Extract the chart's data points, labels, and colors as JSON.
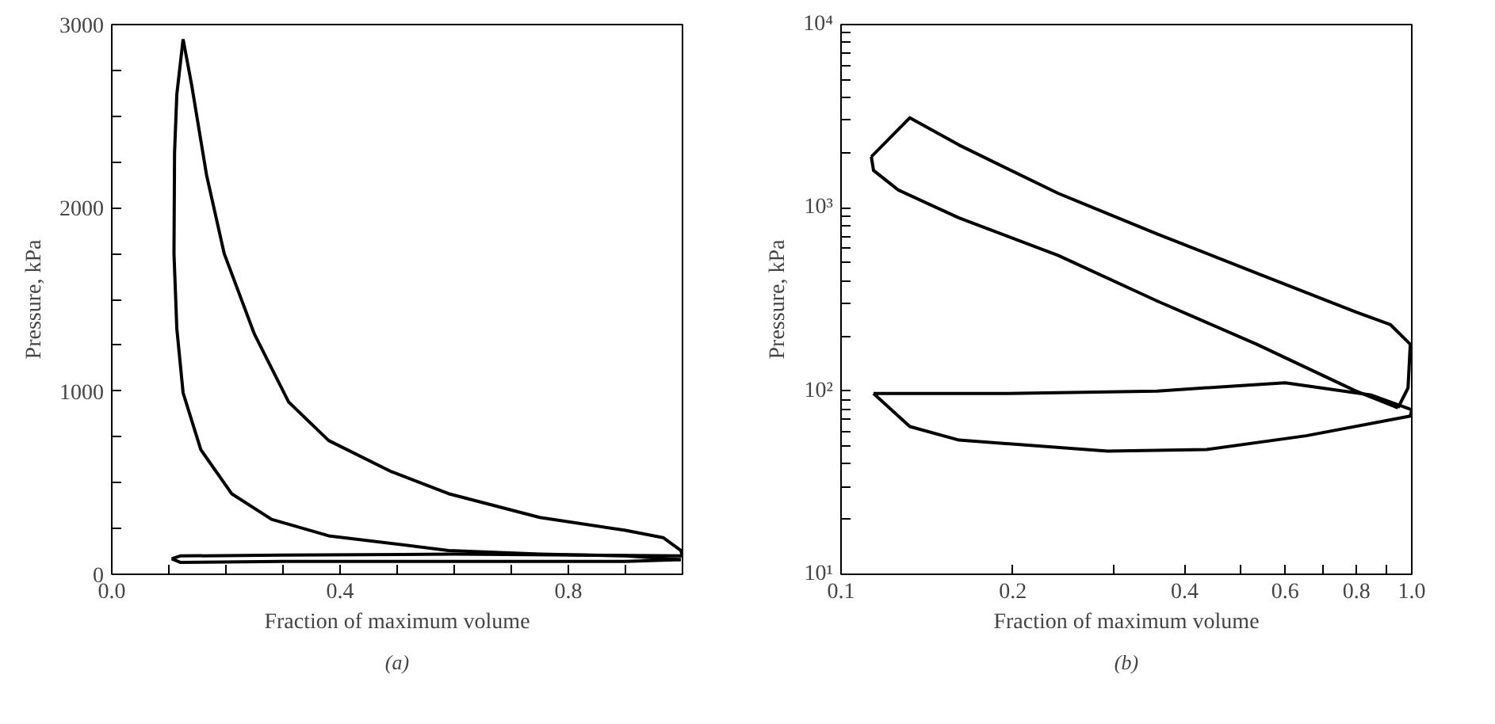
{
  "chart_data": [
    {
      "type": "line",
      "xlabel": "Fraction of maximum volume",
      "ylabel": "Pressure, kPa",
      "annotations": [
        "(a)"
      ],
      "xlim": [
        0.0,
        1.0
      ],
      "ylim": [
        0,
        3000
      ],
      "xticks": [
        {
          "value": 0.0,
          "label": "0.0"
        },
        {
          "value": 0.1,
          "label": null
        },
        {
          "value": 0.2,
          "label": null
        },
        {
          "value": 0.3,
          "label": null
        },
        {
          "value": 0.4,
          "label": "0.4"
        },
        {
          "value": 0.5,
          "label": null
        },
        {
          "value": 0.6,
          "label": null
        },
        {
          "value": 0.7,
          "label": null
        },
        {
          "value": 0.8,
          "label": "0.8"
        },
        {
          "value": 0.9,
          "label": null
        }
      ],
      "yticks": [
        0,
        {
          "value": 250,
          "label": null
        },
        {
          "value": 500,
          "label": null
        },
        {
          "value": 750,
          "label": null
        },
        1000,
        {
          "value": 1250,
          "label": null
        },
        {
          "value": 1500,
          "label": null
        },
        {
          "value": 1750,
          "label": null
        },
        2000,
        {
          "value": 2250,
          "label": null
        },
        {
          "value": 2500,
          "label": null
        },
        {
          "value": 2750,
          "label": null
        },
        3000
      ],
      "grid": false,
      "marker": "none",
      "line_style": "solid",
      "series": [
        {
          "color": "#000000",
          "x": [
            0.997,
            0.9,
            0.75,
            0.59,
            0.38,
            0.28,
            0.21,
            0.156,
            0.125,
            0.114,
            0.109,
            0.11,
            0.114,
            0.125
          ],
          "values": [
            80,
            100,
            110,
            130,
            210,
            300,
            440,
            680,
            990,
            1340,
            1750,
            2300,
            2620,
            2920
          ]
        },
        {
          "color": "#000000",
          "x": [
            0.125,
            0.14,
            0.166,
            0.197,
            0.25,
            0.31,
            0.38,
            0.49,
            0.59,
            0.75,
            0.9,
            0.966,
            0.997,
            1.0
          ],
          "values": [
            2920,
            2670,
            2180,
            1750,
            1310,
            940,
            730,
            560,
            440,
            310,
            240,
            200,
            130,
            100
          ]
        },
        {
          "color": "#000000",
          "x": [
            1.0,
            0.6,
            0.3,
            0.12,
            0.105
          ],
          "values": [
            100,
            110,
            105,
            100,
            85
          ]
        },
        {
          "color": "#000000",
          "x": [
            0.105,
            0.12,
            0.3,
            0.6,
            0.9,
            0.997
          ],
          "values": [
            85,
            65,
            70,
            70,
            70,
            80
          ]
        }
      ]
    },
    {
      "type": "line",
      "xlabel": "Fraction of maximum volume",
      "ylabel": "Pressure, kPa",
      "annotations": [
        "(b)"
      ],
      "log": "xy",
      "xlim": [
        0.1,
        1.0
      ],
      "ylim": [
        10,
        10000
      ],
      "xticks": [
        {
          "value": 0.1,
          "label": "0.1"
        },
        {
          "value": 0.2,
          "label": "0.2"
        },
        {
          "value": 0.3,
          "label": null
        },
        {
          "value": 0.4,
          "label": "0.4"
        },
        {
          "value": 0.5,
          "label": null
        },
        {
          "value": 0.6,
          "label": "0.6"
        },
        {
          "value": 0.7,
          "label": null
        },
        {
          "value": 0.8,
          "label": "0.8"
        },
        {
          "value": 0.9,
          "label": null
        },
        {
          "value": 1.0,
          "label": "1.0"
        }
      ],
      "yticks": [
        {
          "value": 10,
          "label": "10¹"
        },
        {
          "value": 20,
          "label": null
        },
        {
          "value": 30,
          "label": null
        },
        {
          "value": 40,
          "label": null
        },
        {
          "value": 50,
          "label": null
        },
        {
          "value": 60,
          "label": null
        },
        {
          "value": 70,
          "label": null
        },
        {
          "value": 80,
          "label": null
        },
        {
          "value": 90,
          "label": null
        },
        {
          "value": 100,
          "label": "10²"
        },
        {
          "value": 200,
          "label": null
        },
        {
          "value": 300,
          "label": null
        },
        {
          "value": 400,
          "label": null
        },
        {
          "value": 500,
          "label": null
        },
        {
          "value": 600,
          "label": null
        },
        {
          "value": 700,
          "label": null
        },
        {
          "value": 800,
          "label": null
        },
        {
          "value": 900,
          "label": null
        },
        {
          "value": 1000,
          "label": "10³"
        },
        {
          "value": 2000,
          "label": null
        },
        {
          "value": 3000,
          "label": null
        },
        {
          "value": 4000,
          "label": null
        },
        {
          "value": 5000,
          "label": null
        },
        {
          "value": 6000,
          "label": null
        },
        {
          "value": 7000,
          "label": null
        },
        {
          "value": 8000,
          "label": null
        },
        {
          "value": 9000,
          "label": null
        },
        {
          "value": 10000,
          "label": "10⁴"
        }
      ],
      "grid": false,
      "marker": "none",
      "line_style": "solid",
      "series": [
        {
          "color": "#000000",
          "x": [
            0.946,
            0.798,
            0.535,
            0.358,
            0.24,
            0.161,
            0.126,
            0.114,
            0.113
          ],
          "values": [
            81,
            100,
            180,
            310,
            550,
            880,
            1250,
            1600,
            1900
          ]
        },
        {
          "color": "#000000",
          "x": [
            0.113,
            0.132,
            0.161,
            0.24,
            0.358,
            0.535,
            0.798,
            0.918,
            0.994,
            0.985,
            0.946
          ],
          "values": [
            1900,
            3100,
            2200,
            1200,
            720,
            440,
            270,
            230,
            180,
            104,
            81
          ]
        },
        {
          "color": "#000000",
          "x": [
            1.0,
            0.85,
            0.6,
            0.358,
            0.196,
            0.114
          ],
          "values": [
            79,
            95,
            111,
            100,
            97,
            97
          ]
        },
        {
          "color": "#000000",
          "x": [
            0.114,
            0.132,
            0.161,
            0.293,
            0.437,
            0.653,
            0.994,
            1.0
          ],
          "values": [
            97,
            64,
            54,
            47,
            48,
            57,
            73,
            79
          ]
        }
      ]
    }
  ]
}
